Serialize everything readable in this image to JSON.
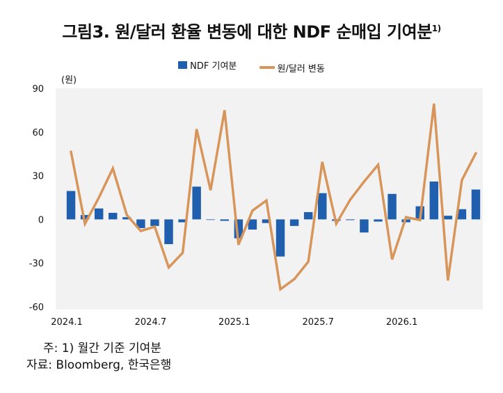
{
  "title": "그림3. 원/달러 환율 변동에 대한 NDF 순매입 기여분",
  "title_sup": "1)",
  "notes": {
    "note1": "주: 1) 월간 기준 기여분",
    "source": "자료: Bloomberg, 한국은행"
  },
  "colors": {
    "bar": "#1f5fad",
    "line": "#d7955a",
    "plot_bg": "#f2f2f2"
  },
  "chart_data": {
    "type": "bar+line",
    "unit_label": "(원)",
    "ylim": [
      -60,
      90
    ],
    "yticks": [
      90,
      60,
      30,
      0,
      -30,
      -60
    ],
    "x_tick_labels": [
      {
        "index": 0,
        "label": "2024.1"
      },
      {
        "index": 6,
        "label": "2024.7"
      },
      {
        "index": 12,
        "label": "2025.1"
      },
      {
        "index": 18,
        "label": "2025.7"
      },
      {
        "index": 24,
        "label": "2026.1"
      }
    ],
    "categories": [
      "2024.1",
      "2024.2",
      "2024.3",
      "2024.4",
      "2024.5",
      "2024.6",
      "2024.7",
      "2024.8",
      "2024.9",
      "2024.10",
      "2024.11",
      "2024.12",
      "2025.1",
      "2025.2",
      "2025.3",
      "2025.4",
      "2025.5",
      "2025.6",
      "2025.7",
      "2025.8",
      "2025.9",
      "2025.10",
      "2025.11",
      "2025.12",
      "2026.1",
      "2026.2",
      "2026.3",
      "2026.4",
      "2026.5",
      "2026.6"
    ],
    "series": [
      {
        "name": "NDF 기여분",
        "kind": "bar",
        "values": [
          19.5,
          3,
          7.5,
          4.5,
          1.5,
          -6,
          -4.5,
          -17,
          -2,
          22.5,
          0,
          -1,
          -13,
          -7,
          -2.5,
          -25.5,
          -4.5,
          5,
          18,
          -1,
          -0.5,
          -9,
          -1.5,
          17.5,
          -2,
          9,
          26,
          2.5,
          7,
          20.5
        ]
      },
      {
        "name": "원/달러 변동",
        "kind": "line",
        "values": [
          46.5,
          -3,
          15,
          35,
          3,
          -8,
          -5,
          -33,
          -23,
          62,
          20,
          75,
          -17.5,
          6,
          13,
          -48,
          -41,
          -29,
          39.5,
          -3,
          13.5,
          26,
          37.5,
          -27.5,
          1.5,
          -0.5,
          79.5,
          -42,
          27,
          45.5
        ]
      }
    ]
  }
}
